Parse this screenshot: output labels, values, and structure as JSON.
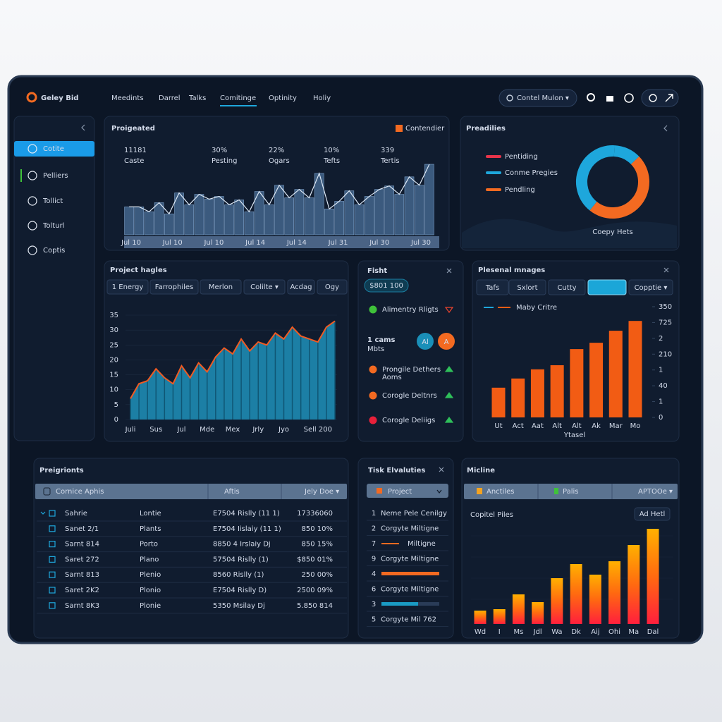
{
  "nav": {
    "logo": "Geley Bid",
    "items": [
      "Meedints",
      "Darrel",
      "Talks",
      "Comitinge",
      "Optinity",
      "Holiy"
    ],
    "search": "Contel Mulon ▾"
  },
  "sidebar": {
    "items": [
      "Cotite",
      "Pelliers",
      "Tollict",
      "Tolturl",
      "Coptis"
    ]
  },
  "overview": {
    "title": "Proigeated",
    "legend": "Contendier",
    "legend_color": "#f36a21",
    "stats": [
      {
        "value": "11181",
        "label": "Caste"
      },
      {
        "value": "30%",
        "label": "Pesting"
      },
      {
        "value": "22%",
        "label": "Ogars"
      },
      {
        "value": "10%",
        "label": "Tefts"
      },
      {
        "value": "339",
        "label": "Tertis"
      }
    ],
    "bars": [
      40,
      40,
      33,
      46,
      30,
      60,
      43,
      58,
      51,
      55,
      43,
      50,
      33,
      62,
      43,
      71,
      53,
      65,
      53,
      88,
      37,
      48,
      63,
      43,
      55,
      65,
      70,
      58,
      83,
      71,
      101
    ],
    "x_labels": [
      "Jul 10",
      "Jul 10",
      "Jul 10",
      "Jul 14",
      "Jul 14",
      "Jul 31",
      "Jul 30",
      "Jul 30"
    ],
    "color": "#3b5a7e"
  },
  "predictions": {
    "title": "Preadilies",
    "legend": [
      {
        "name": "Pentiding",
        "color": "#e8344a"
      },
      {
        "name": "Conme Pregies",
        "color": "#1ea7dc"
      },
      {
        "name": "Pendling",
        "color": "#f36a21"
      }
    ],
    "donut": [
      {
        "value": 12,
        "color": "#1ea7dc"
      },
      {
        "value": 48,
        "color": "#f36a21"
      },
      {
        "value": 40,
        "color": "#1ea7dc"
      }
    ],
    "caption": "Coepy Hets"
  },
  "area": {
    "title": "Project hagles",
    "tabs": [
      "1 Energy",
      "Farrophiles",
      "Merlon",
      "Colilte ▾",
      "Acdag",
      "Ogy"
    ],
    "ylim": [
      0,
      35
    ],
    "yticks": [
      0,
      5,
      10,
      15,
      20,
      25,
      30,
      35
    ],
    "values": [
      7,
      12,
      13,
      17,
      14,
      12,
      18,
      14,
      19,
      16,
      21,
      24,
      22,
      27,
      23,
      26,
      25,
      29,
      27,
      31,
      28,
      27,
      26,
      31,
      33
    ],
    "categories": [
      "Juli",
      null,
      null,
      "Sus",
      null,
      null,
      "Jul",
      null,
      null,
      "Mde",
      null,
      null,
      "Mex",
      null,
      null,
      "Jrly",
      null,
      null,
      "Jyo",
      null,
      null,
      null,
      "Sell 200",
      null,
      null
    ],
    "color": "#1c7fa5",
    "line_color": "#f05a22"
  },
  "feed": {
    "title": "Fisht",
    "badge": "$801 100",
    "count": "1 cams",
    "count_sub": "Mbts",
    "avatars": [
      {
        "text": "Al",
        "color": "#1a8fb8"
      },
      {
        "text": "A",
        "color": "#f36a21"
      }
    ],
    "items": [
      {
        "label": "Alimentry Rligts",
        "dot": "#3fc23a",
        "trend": "down",
        "trend_color": "#f0452e"
      },
      {
        "label": "Prongile Dethers",
        "sub": "Aoms",
        "dot": "#f36a21",
        "trend": "up",
        "trend_color": "#2fbf5a"
      },
      {
        "label": "Corogle Deltnrs",
        "dot": "#f36a21",
        "trend": "up",
        "trend_color": "#2fbf5a"
      },
      {
        "label": "Corogle Deliigs",
        "dot": "#e8203a",
        "trend": "up",
        "trend_color": "#2fbf5a"
      }
    ]
  },
  "personal": {
    "title": "Plesenal mnages",
    "tabs": [
      "Tafs",
      "Sxlort",
      "Cutty",
      "",
      "Copptie ▾"
    ],
    "legend": "Maby Critre",
    "ylim": [
      0,
      350
    ],
    "yticks": [
      0,
      {
        "value": 50,
        "label": "1"
      },
      {
        "value": 100,
        "label": "40"
      },
      {
        "value": 150,
        "label": "1"
      },
      {
        "value": 200,
        "label": "210"
      },
      {
        "value": 250,
        "label": "2"
      },
      {
        "value": 300,
        "label": "725"
      },
      350
    ],
    "values": [
      94,
      123,
      152,
      165,
      216,
      236,
      274,
      305
    ],
    "categories": [
      "Ut",
      "Act",
      "Aat",
      "Alt",
      "Alt",
      "Ak",
      "Mar",
      "Mo"
    ],
    "x_title": "Ytasel",
    "color": "#f25c14"
  },
  "table": {
    "title": "Preigrionts",
    "columns": [
      "Cornice Aphis",
      "Aftis",
      "Jely Doe ▾"
    ],
    "rows": [
      {
        "cells": [
          "Sahrie",
          "Lontie",
          "E7504 Rislly (11 1)",
          "17336060"
        ],
        "color": "#e8edf5"
      },
      {
        "cells": [
          "Sanet 2/1",
          "Plants",
          "E7504 Iislaiy (11 1)",
          "850 10%"
        ],
        "color": "#27c24a"
      },
      {
        "cells": [
          "Sarnt 814",
          "Porto",
          "8850 4 Irslaiy Dj",
          "850 15%"
        ],
        "color": "#27c24a"
      },
      {
        "cells": [
          "Saret 272",
          "Plano",
          "57504 Rislly (1)",
          "$850 01%"
        ],
        "color": "#ef3d3d"
      },
      {
        "cells": [
          "Sarnt 813",
          "Plenio",
          "8560 Rislly (1)",
          "250 00%"
        ],
        "color": "#27c24a"
      },
      {
        "cells": [
          "Saret 2K2",
          "Plonio",
          "E7504 Rislly D)",
          "2500 09%"
        ],
        "color": "#27c24a"
      },
      {
        "cells": [
          "Sarnt 8K3",
          "Plonie",
          "5350 Msilay Dj",
          "5.850 814"
        ],
        "color": "#ef3d3d"
      }
    ]
  },
  "tasks": {
    "title": "Tisk Elvaluties",
    "dropdown": "Project",
    "items": [
      {
        "number": "1",
        "label": "Neme Pele Cenilgy"
      },
      {
        "number": "2",
        "label": "Corgyte Miltigne"
      },
      {
        "number": "7",
        "label": "Miltigne",
        "bar": "#f36a21"
      },
      {
        "number": "9",
        "label": "Corgyte Miltigne"
      },
      {
        "number": "4",
        "bar": "#f36a21"
      },
      {
        "number": "6",
        "label": "Corgyte Miltigne"
      },
      {
        "number": "3",
        "bar": "#1a9bc4"
      },
      {
        "number": "5",
        "label": "Corgyte Mil 762"
      }
    ]
  },
  "timeline": {
    "title": "Micline",
    "tabs": [
      "Anctiles",
      "Palis",
      "APTOOe ▾"
    ],
    "subtitle": "Copitel Piles",
    "button": "Ad Hetl",
    "values": [
      19,
      21,
      42,
      31,
      65,
      85,
      70,
      89,
      112,
      135
    ],
    "categories": [
      "Wd",
      "I",
      "Ms",
      "Jdl",
      "Wa",
      "Dk",
      "Aij",
      "Ohi",
      "Ma",
      "Dal"
    ]
  }
}
